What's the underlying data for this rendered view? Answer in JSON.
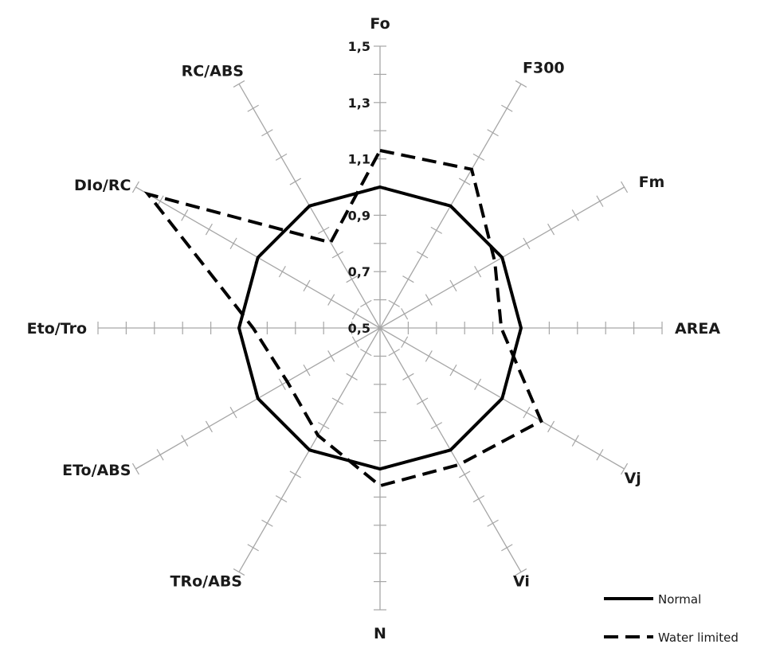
{
  "chart_data": {
    "type": "radar",
    "title": "",
    "axes": [
      "Fo",
      "F300",
      "Fm",
      "AREA",
      "Vj",
      "Vi",
      "N",
      "TRo/ABS",
      "ETo/ABS",
      "Eto/Tro",
      "DIo/RC",
      "RC/ABS"
    ],
    "radial_range": [
      0.5,
      1.5
    ],
    "radial_ticks": [
      "0,5",
      "0,7",
      "0,9",
      "1,1",
      "1,3",
      "1,5"
    ],
    "minor_tick_step": 0.1,
    "series": [
      {
        "name": "Normal",
        "style": "solid",
        "color": "#000000",
        "values": [
          1.0,
          1.0,
          1.0,
          1.0,
          1.0,
          1.0,
          1.0,
          1.0,
          1.0,
          1.0,
          1.0,
          1.0
        ]
      },
      {
        "name": "Water limited",
        "style": "dashed",
        "color": "#000000",
        "values": [
          1.13,
          1.15,
          0.97,
          0.93,
          1.16,
          1.06,
          1.06,
          0.94,
          0.88,
          0.95,
          1.45,
          0.85
        ]
      }
    ],
    "legend_position": "bottom-right",
    "grid": false
  }
}
